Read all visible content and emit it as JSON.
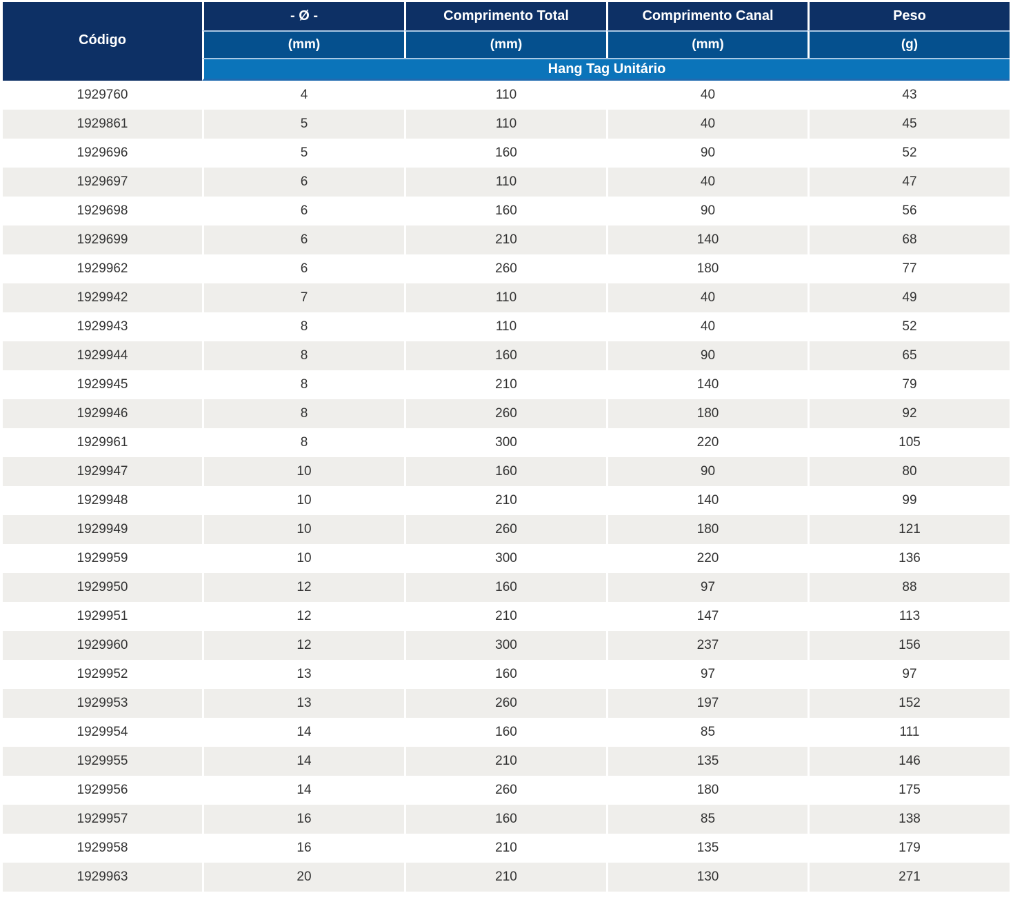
{
  "table": {
    "header": {
      "codigo_label": "Código",
      "columns": [
        {
          "label": "- Ø -",
          "unit": "(mm)"
        },
        {
          "label": "Comprimento Total",
          "unit": "(mm)"
        },
        {
          "label": "Comprimento Canal",
          "unit": "(mm)"
        },
        {
          "label": "Peso",
          "unit": "(g)"
        }
      ],
      "group_label": "Hang Tag Unitário"
    },
    "rows": [
      [
        "1929760",
        "4",
        "110",
        "40",
        "43"
      ],
      [
        "1929861",
        "5",
        "110",
        "40",
        "45"
      ],
      [
        "1929696",
        "5",
        "160",
        "90",
        "52"
      ],
      [
        "1929697",
        "6",
        "110",
        "40",
        "47"
      ],
      [
        "1929698",
        "6",
        "160",
        "90",
        "56"
      ],
      [
        "1929699",
        "6",
        "210",
        "140",
        "68"
      ],
      [
        "1929962",
        "6",
        "260",
        "180",
        "77"
      ],
      [
        "1929942",
        "7",
        "110",
        "40",
        "49"
      ],
      [
        "1929943",
        "8",
        "110",
        "40",
        "52"
      ],
      [
        "1929944",
        "8",
        "160",
        "90",
        "65"
      ],
      [
        "1929945",
        "8",
        "210",
        "140",
        "79"
      ],
      [
        "1929946",
        "8",
        "260",
        "180",
        "92"
      ],
      [
        "1929961",
        "8",
        "300",
        "220",
        "105"
      ],
      [
        "1929947",
        "10",
        "160",
        "90",
        "80"
      ],
      [
        "1929948",
        "10",
        "210",
        "140",
        "99"
      ],
      [
        "1929949",
        "10",
        "260",
        "180",
        "121"
      ],
      [
        "1929959",
        "10",
        "300",
        "220",
        "136"
      ],
      [
        "1929950",
        "12",
        "160",
        "97",
        "88"
      ],
      [
        "1929951",
        "12",
        "210",
        "147",
        "113"
      ],
      [
        "1929960",
        "12",
        "300",
        "237",
        "156"
      ],
      [
        "1929952",
        "13",
        "160",
        "97",
        "97"
      ],
      [
        "1929953",
        "13",
        "260",
        "197",
        "152"
      ],
      [
        "1929954",
        "14",
        "160",
        "85",
        "111"
      ],
      [
        "1929955",
        "14",
        "210",
        "135",
        "146"
      ],
      [
        "1929956",
        "14",
        "260",
        "180",
        "175"
      ],
      [
        "1929957",
        "16",
        "160",
        "85",
        "138"
      ],
      [
        "1929958",
        "16",
        "210",
        "135",
        "179"
      ],
      [
        "1929963",
        "20",
        "210",
        "130",
        "271"
      ]
    ]
  },
  "colors": {
    "header_dark_navy": "#0d3065",
    "header_mid_blue": "#05508e",
    "header_group_blue": "#0b74ba",
    "group_bottom_border": "#1f6ab0",
    "header_separator": "#aac8e4",
    "zebra_row": "#efeeeb",
    "body_text": "#333333",
    "header_text": "#ffffff"
  }
}
